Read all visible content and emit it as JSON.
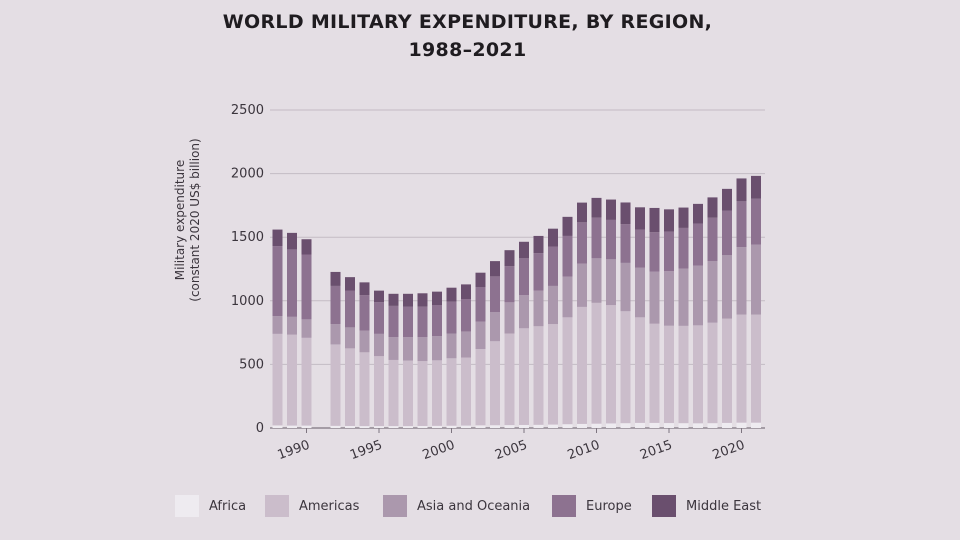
{
  "title_line1": "WORLD MILITARY EXPENDITURE, BY REGION,",
  "title_line2": "1988–2021",
  "ylabel_line1": "Military expenditure",
  "ylabel_line2": "(constant 2020 US$ billion)",
  "colors": {
    "background": "#e4dee4",
    "Africa": "#eeebf0",
    "Americas": "#cbbdcb",
    "Asia and Oceania": "#ab98ad",
    "Europe": "#8d7290",
    "Middle East": "#6a4f6e"
  },
  "legend": [
    {
      "label": "Africa"
    },
    {
      "label": "Americas"
    },
    {
      "label": "Asia and Oceania"
    },
    {
      "label": "Europe"
    },
    {
      "label": "Middle East"
    }
  ],
  "chart_data": {
    "type": "bar",
    "stacked": true,
    "title": "WORLD MILITARY EXPENDITURE, BY REGION, 1988–2021",
    "xlabel": "",
    "ylabel": "Military expenditure (constant 2020 US$ billion)",
    "ylim": [
      0,
      2500
    ],
    "yticks": [
      0,
      500,
      1000,
      1500,
      2000,
      2500
    ],
    "xticks": [
      1990,
      1995,
      2000,
      2005,
      2010,
      2015,
      2020
    ],
    "grid": true,
    "legend_position": "bottom",
    "categories": [
      1988,
      1989,
      1990,
      1991,
      1992,
      1993,
      1994,
      1995,
      1996,
      1997,
      1998,
      1999,
      2000,
      2001,
      2002,
      2003,
      2004,
      2005,
      2006,
      2007,
      2008,
      2009,
      2010,
      2011,
      2012,
      2013,
      2014,
      2015,
      2016,
      2017,
      2018,
      2019,
      2020,
      2021
    ],
    "series": [
      {
        "name": "Africa",
        "values": [
          20,
          19,
          19,
          null,
          17,
          16,
          15,
          15,
          15,
          15,
          16,
          17,
          18,
          19,
          21,
          22,
          23,
          24,
          25,
          27,
          30,
          32,
          34,
          36,
          38,
          40,
          40,
          39,
          38,
          37,
          38,
          40,
          42,
          42
        ]
      },
      {
        "name": "Americas",
        "values": [
          720,
          715,
          690,
          null,
          640,
          610,
          580,
          550,
          520,
          515,
          510,
          515,
          530,
          535,
          600,
          660,
          720,
          760,
          775,
          790,
          840,
          920,
          950,
          930,
          880,
          830,
          780,
          765,
          765,
          770,
          790,
          820,
          850,
          850
        ]
      },
      {
        "name": "Asia and Oceania",
        "values": [
          140,
          140,
          145,
          null,
          160,
          165,
          170,
          175,
          180,
          185,
          188,
          190,
          195,
          205,
          215,
          230,
          245,
          260,
          280,
          300,
          320,
          340,
          350,
          360,
          380,
          390,
          410,
          430,
          450,
          470,
          485,
          500,
          530,
          550
        ]
      },
      {
        "name": "Europe",
        "values": [
          550,
          530,
          510,
          null,
          300,
          290,
          280,
          250,
          245,
          240,
          240,
          245,
          250,
          255,
          270,
          280,
          285,
          290,
          295,
          310,
          320,
          325,
          320,
          310,
          305,
          300,
          310,
          310,
          320,
          330,
          340,
          350,
          360,
          360
        ]
      },
      {
        "name": "Middle East",
        "values": [
          130,
          130,
          120,
          null,
          110,
          105,
          100,
          90,
          95,
          100,
          105,
          105,
          110,
          115,
          115,
          120,
          125,
          130,
          135,
          140,
          150,
          155,
          155,
          160,
          170,
          175,
          190,
          175,
          160,
          155,
          160,
          170,
          180,
          180
        ]
      }
    ]
  }
}
